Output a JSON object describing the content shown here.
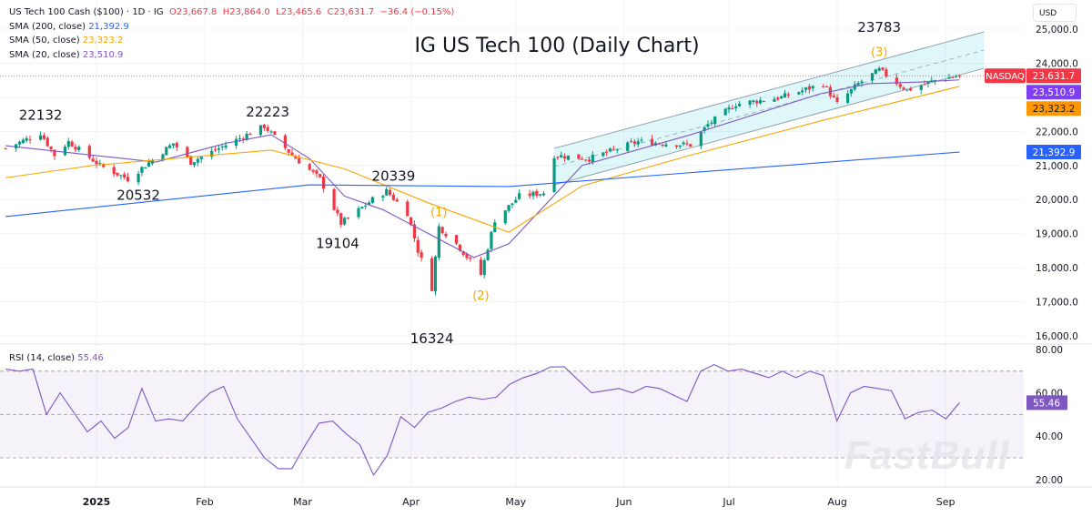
{
  "header": {
    "symbol": "US Tech 100 Cash ($100) · 1D · IG",
    "open": "O23,667.8",
    "high": "H23,864.0",
    "low": "L23,465.6",
    "close": "C23,631.7",
    "change": "−36.4 (−0.15%)",
    "currency": "USD"
  },
  "legend": [
    {
      "label": "SMA (200, close)",
      "value": "21,392.9",
      "color": "#2962ff"
    },
    {
      "label": "SMA (50, close)",
      "value": "23,323.2",
      "color": "#f7a600"
    },
    {
      "label": "SMA (20, close)",
      "value": "23,510.9",
      "color": "#7e57c2"
    }
  ],
  "rsi_legend": {
    "label": "RSI (14, close)",
    "value": "55.46"
  },
  "watermark": "FastBull",
  "chart_data": {
    "type": "candlestick",
    "title": "IG US Tech 100 (Daily Chart)",
    "up_color": "#089981",
    "down_color": "#f23645",
    "ylim": [
      16000,
      25000
    ],
    "y_ticks": [
      "25,000.0",
      "24,000.0",
      "22,000.0",
      "21,000.0",
      "20,000.0",
      "19,000.0",
      "18,000.0",
      "17,000.0",
      "16,000.0"
    ],
    "y_tick_values": [
      25000,
      24000,
      22000,
      21000,
      20000,
      19000,
      18000,
      17000,
      16000
    ],
    "x_ticks": [
      {
        "label": "2025",
        "date": "2025-01-01"
      },
      {
        "label": "Feb",
        "date": "2025-02-01"
      },
      {
        "label": "Mar",
        "date": "2025-03-01"
      },
      {
        "label": "Apr",
        "date": "2025-04-01"
      },
      {
        "label": "May",
        "date": "2025-05-01"
      },
      {
        "label": "Jun",
        "date": "2025-06-01"
      },
      {
        "label": "Jul",
        "date": "2025-07-01"
      },
      {
        "label": "Aug",
        "date": "2025-08-01"
      },
      {
        "label": "Sep",
        "date": "2025-09-01"
      }
    ],
    "close_path": [
      [
        "2024-12-06",
        21500
      ],
      [
        "2024-12-16",
        21950
      ],
      [
        "2024-12-20",
        21300
      ],
      [
        "2024-12-24",
        21700
      ],
      [
        "2025-01-02",
        21000
      ],
      [
        "2025-01-10",
        20600
      ],
      [
        "2025-01-23",
        21650
      ],
      [
        "2025-01-28",
        21100
      ],
      [
        "2025-02-05",
        21500
      ],
      [
        "2025-02-18",
        22150
      ],
      [
        "2025-02-26",
        21300
      ],
      [
        "2025-03-06",
        20600
      ],
      [
        "2025-03-12",
        19300
      ],
      [
        "2025-03-21",
        20000
      ],
      [
        "2025-03-25",
        20250
      ],
      [
        "2025-03-31",
        19600
      ],
      [
        "2025-04-03",
        18500
      ],
      [
        "2025-04-07",
        17400
      ],
      [
        "2025-04-09",
        19200
      ],
      [
        "2025-04-14",
        18700
      ],
      [
        "2025-04-21",
        17800
      ],
      [
        "2025-04-25",
        19400
      ],
      [
        "2025-05-02",
        20100
      ],
      [
        "2025-05-09",
        20200
      ],
      [
        "2025-05-12",
        21300
      ],
      [
        "2025-05-22",
        21200
      ],
      [
        "2025-06-05",
        21700
      ],
      [
        "2025-06-20",
        21600
      ],
      [
        "2025-06-25",
        22200
      ],
      [
        "2025-07-03",
        22800
      ],
      [
        "2025-07-16",
        23000
      ],
      [
        "2025-07-28",
        23400
      ],
      [
        "2025-08-01",
        22800
      ],
      [
        "2025-08-07",
        23400
      ],
      [
        "2025-08-13",
        23800
      ],
      [
        "2025-08-21",
        23200
      ],
      [
        "2025-08-29",
        23500
      ],
      [
        "2025-09-05",
        23631.7
      ]
    ],
    "sma": [
      {
        "name": "SMA (20, close)",
        "color": "#7e57c2",
        "points": [
          [
            "2024-12-06",
            21580
          ],
          [
            "2024-12-31",
            21300
          ],
          [
            "2025-01-18",
            21100
          ],
          [
            "2025-02-07",
            21650
          ],
          [
            "2025-02-20",
            21900
          ],
          [
            "2025-03-03",
            21200
          ],
          [
            "2025-03-13",
            20100
          ],
          [
            "2025-03-24",
            19700
          ],
          [
            "2025-04-06",
            19000
          ],
          [
            "2025-04-19",
            18300
          ],
          [
            "2025-04-29",
            18700
          ],
          [
            "2025-05-20",
            21000
          ],
          [
            "2025-06-20",
            21900
          ],
          [
            "2025-07-27",
            23100
          ],
          [
            "2025-08-10",
            23400
          ],
          [
            "2025-08-25",
            23450
          ],
          [
            "2025-09-05",
            23510.9
          ]
        ]
      },
      {
        "name": "SMA (50, close)",
        "color": "#f7a600",
        "points": [
          [
            "2024-12-06",
            20640
          ],
          [
            "2024-12-31",
            21000
          ],
          [
            "2025-02-20",
            21450
          ],
          [
            "2025-03-13",
            20900
          ],
          [
            "2025-04-06",
            19900
          ],
          [
            "2025-04-29",
            19040
          ],
          [
            "2025-05-20",
            20400
          ],
          [
            "2025-06-20",
            21300
          ],
          [
            "2025-07-27",
            22300
          ],
          [
            "2025-09-05",
            23323.2
          ]
        ]
      },
      {
        "name": "SMA (200, close)",
        "color": "#2962ff",
        "points": [
          [
            "2024-12-06",
            19500
          ],
          [
            "2025-03-03",
            20430
          ],
          [
            "2025-04-29",
            20380
          ],
          [
            "2025-09-05",
            21392.9
          ]
        ]
      }
    ],
    "channel": {
      "start": "2025-05-12",
      "end": "2025-09-12",
      "upper": [
        21500,
        24920
      ],
      "lower": [
        20430,
        23850
      ]
    },
    "price_tags": [
      {
        "name": "NASDAQ",
        "value": "23,631.7",
        "price": 23631.7,
        "color": "#f23645"
      },
      {
        "value": "23,510.9",
        "price": 23510.9,
        "color": "#7e3ff2"
      },
      {
        "value": "23,323.2",
        "price": 23323.2,
        "color": "#ff9800"
      },
      {
        "value": "21,392.9",
        "price": 21392.9,
        "color": "#2962ff"
      }
    ],
    "annotations": [
      {
        "text": "22132",
        "date": "2024-12-16",
        "price": 22132,
        "pos": "above",
        "color": "#131722"
      },
      {
        "text": "20532",
        "date": "2025-01-13",
        "price": 20532,
        "pos": "below",
        "color": "#131722"
      },
      {
        "text": "22223",
        "date": "2025-02-19",
        "price": 22223,
        "pos": "above",
        "color": "#131722"
      },
      {
        "text": "19104",
        "date": "2025-03-11",
        "price": 19104,
        "pos": "below",
        "color": "#131722"
      },
      {
        "text": "20339",
        "date": "2025-03-27",
        "price": 20339,
        "pos": "above",
        "color": "#131722"
      },
      {
        "text": "16324",
        "date": "2025-04-07",
        "price": 16324,
        "pos": "below",
        "color": "#131722"
      },
      {
        "text": "23783",
        "date": "2025-08-13",
        "price": 24700,
        "pos": "above",
        "color": "#131722"
      },
      {
        "text": "(1)",
        "date": "2025-04-09",
        "price": 19300,
        "pos": "above",
        "color": "#f7a600"
      },
      {
        "text": "(2)",
        "date": "2025-04-21",
        "price": 17600,
        "pos": "below",
        "color": "#f7a600"
      },
      {
        "text": "(3)",
        "date": "2025-08-13",
        "price": 24000,
        "pos": "above",
        "color": "#f7a600"
      }
    ],
    "rsi": {
      "ylim": [
        20,
        80
      ],
      "y_ticks": [
        "80.00",
        "60.00",
        "40.00",
        "20.00"
      ],
      "y_tick_values": [
        80,
        60,
        40,
        20
      ],
      "bands": [
        30,
        50,
        70
      ],
      "color": "#7e57c2",
      "start": "2024-12-06",
      "end": "2025-09-05",
      "current": "55.46",
      "values": [
        71,
        70,
        71,
        50,
        60,
        51,
        42,
        47,
        39,
        44,
        62,
        47,
        48,
        47,
        54,
        60,
        63,
        48,
        39,
        30,
        25,
        25,
        36,
        46,
        47,
        41,
        36,
        22,
        31,
        49,
        44,
        51,
        53,
        56,
        58,
        57,
        58,
        64,
        67,
        69,
        72,
        72,
        66,
        60,
        61,
        62,
        60,
        63,
        62,
        59,
        56,
        70,
        73,
        70,
        71,
        69,
        67,
        70,
        67,
        70,
        68,
        47,
        60,
        63,
        62,
        61,
        48,
        51,
        52,
        48,
        55.46
      ]
    }
  }
}
